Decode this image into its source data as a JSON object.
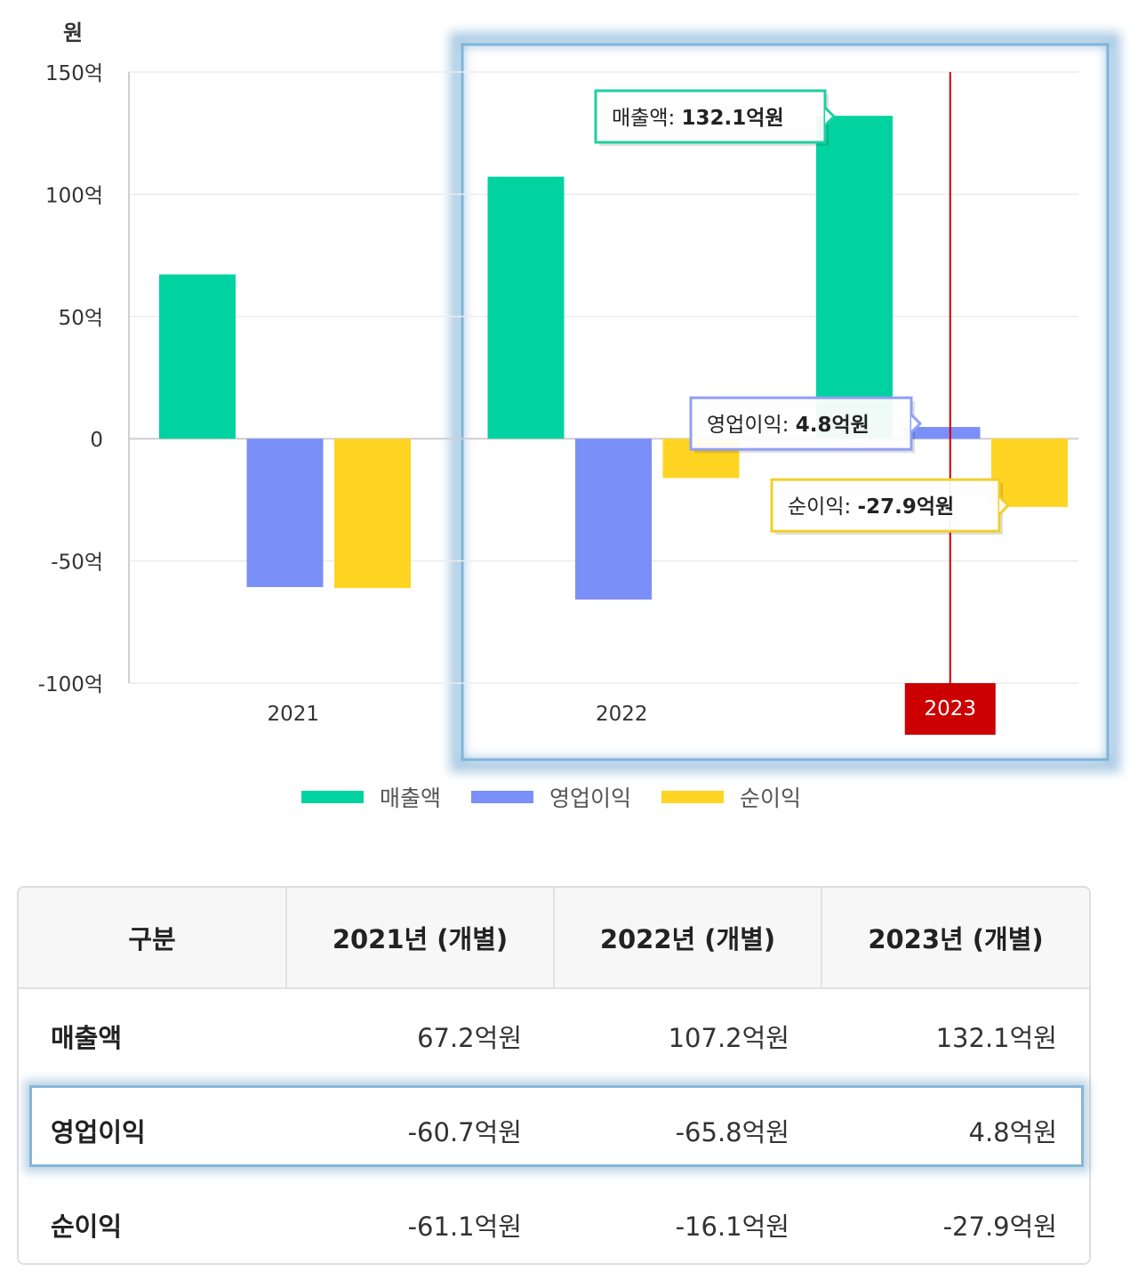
{
  "chart_data": {
    "type": "bar",
    "ylabel": "원",
    "categories": [
      "2021",
      "2022",
      "2023"
    ],
    "ylim": [
      -100,
      150
    ],
    "y_ticks": [
      {
        "value": 150,
        "label": "150억"
      },
      {
        "value": 100,
        "label": "100억"
      },
      {
        "value": 50,
        "label": "50억"
      },
      {
        "value": 0,
        "label": "0"
      },
      {
        "value": -50,
        "label": "-50억"
      },
      {
        "value": -100,
        "label": "-100억"
      }
    ],
    "series": [
      {
        "name": "매출액",
        "color": "#00d3a0",
        "values": [
          67.2,
          107.2,
          132.1
        ]
      },
      {
        "name": "영업이익",
        "color": "#7b8ff8",
        "values": [
          -60.7,
          -65.8,
          4.8
        ]
      },
      {
        "name": "순이익",
        "color": "#ffd422",
        "values": [
          -61.1,
          -16.1,
          -27.9
        ]
      }
    ],
    "highlight_category": "2023",
    "tooltips": [
      {
        "series": "매출액",
        "label": "매출액",
        "value": "132.1억원",
        "border": "#1fcfa0"
      },
      {
        "series": "영업이익",
        "label": "영업이익",
        "value": "4.8억원",
        "border": "#8fa0f5"
      },
      {
        "series": "순이익",
        "label": "순이익",
        "value": "-27.9억원",
        "border": "#f2cf2a"
      }
    ],
    "grid": true,
    "legend_position": "bottom"
  },
  "table": {
    "headers": [
      "구분",
      "2021년 (개별)",
      "2022년 (개별)",
      "2023년 (개별)"
    ],
    "rows": [
      {
        "label": "매출액",
        "values": [
          "67.2억원",
          "107.2억원",
          "132.1억원"
        ]
      },
      {
        "label": "영업이익",
        "values": [
          "-60.7억원",
          "-65.8억원",
          "4.8억원"
        ]
      },
      {
        "label": "순이익",
        "values": [
          "-61.1억원",
          "-16.1억원",
          "-27.9억원"
        ]
      }
    ],
    "highlight_row": "영업이익"
  }
}
